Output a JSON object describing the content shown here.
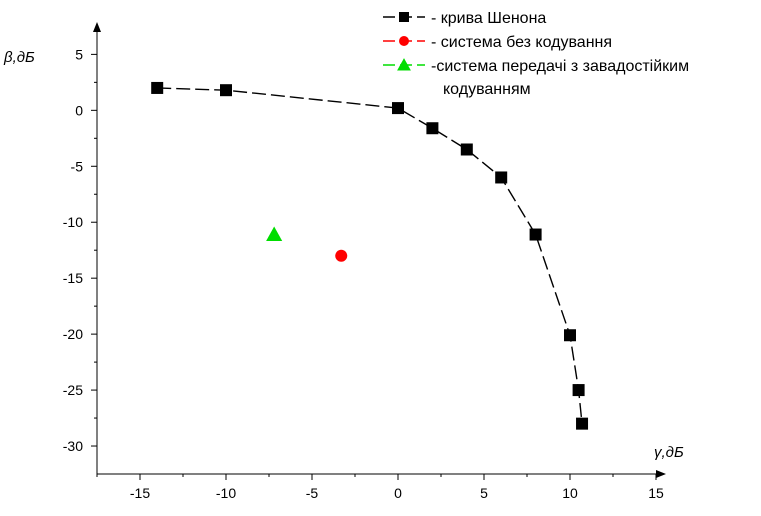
{
  "chart_data": {
    "type": "scatter",
    "title": "",
    "xlabel": "γ,дБ",
    "ylabel": "β,дБ",
    "xlim": [
      -17.5,
      15
    ],
    "ylim": [
      -32.5,
      7
    ],
    "x_ticks": [
      -15,
      -10,
      -5,
      0,
      5,
      10,
      15
    ],
    "y_ticks": [
      5,
      0,
      -5,
      -10,
      -15,
      -20,
      -25,
      -30
    ],
    "grid": false,
    "legend_position": "top-right",
    "series": [
      {
        "name": "- крива Шенона",
        "marker": "square",
        "line": "dashed",
        "color": "#000000",
        "x": [
          -14,
          -10,
          0,
          2,
          4,
          6,
          8,
          10,
          10.5,
          10.7
        ],
        "y": [
          2,
          1.8,
          0.2,
          -1.6,
          -3.5,
          -6,
          -11.1,
          -20.1,
          -25,
          -28
        ]
      },
      {
        "name": "- система без кодування",
        "marker": "circle",
        "line": "dashed",
        "color": "#ff0000",
        "x": [
          -3.3
        ],
        "y": [
          -13
        ]
      },
      {
        "name": "-система передачі з завадостійким",
        "name_line2": "кодуванням",
        "marker": "triangle",
        "line": "dashed",
        "color": "#00dd00",
        "x": [
          -7.2
        ],
        "y": [
          -11.1
        ]
      }
    ]
  }
}
